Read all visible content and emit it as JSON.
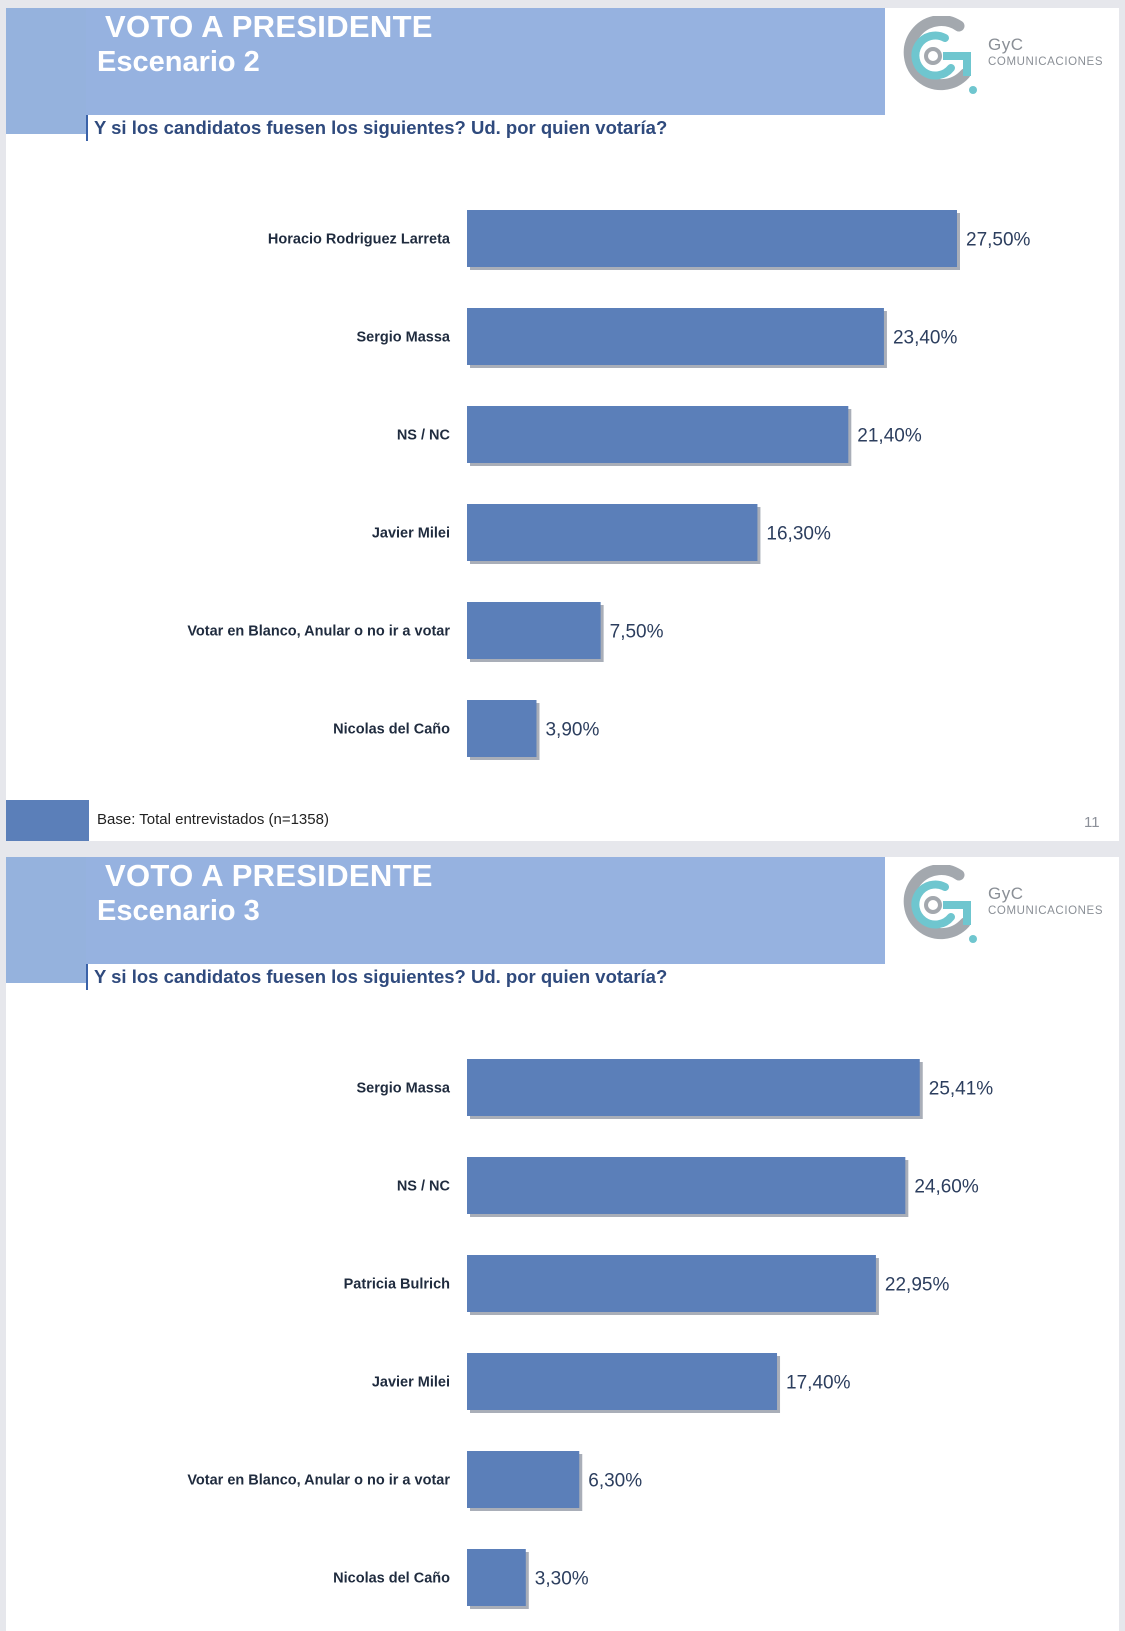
{
  "slides": [
    {
      "title": "VOTO A PRESIDENTE",
      "subtitle": "Escenario 2",
      "question": "Y si los candidatos fuesen los siguientes? Ud. por quien votaría?",
      "footer": "Base: Total entrevistados (n=1358)",
      "page_number": "11"
    },
    {
      "title": "VOTO A PRESIDENTE",
      "subtitle": "Escenario 3",
      "question": "Y si los candidatos fuesen los siguientes? Ud. por quien votaría?"
    }
  ],
  "brand": {
    "name": "GyC",
    "sub": "COMUNICACIONES",
    "colors": {
      "teal": "#6fc6cf",
      "gray": "#a3a8ae"
    }
  },
  "colors": {
    "bar": "#5b7fb9",
    "header": "#96b2e0",
    "question": "#2f4a7d"
  },
  "chart_data": [
    {
      "type": "bar",
      "orientation": "horizontal",
      "title": "VOTO A PRESIDENTE – Escenario 2",
      "categories": [
        "Horacio Rodriguez Larreta",
        "Sergio Massa",
        "NS / NC",
        "Javier Milei",
        "Votar en Blanco, Anular o no ir a votar",
        "Nicolas del Caño"
      ],
      "values": [
        27.5,
        23.4,
        21.4,
        16.3,
        7.5,
        3.9
      ],
      "value_labels": [
        "27,50%",
        "23,40%",
        "21,40%",
        "16,30%",
        "7,50%",
        "3,90%"
      ],
      "xlim": [
        0,
        27.5
      ],
      "unit": "%",
      "grid": false
    },
    {
      "type": "bar",
      "orientation": "horizontal",
      "title": "VOTO A PRESIDENTE – Escenario 3",
      "categories": [
        "Sergio Massa",
        "NS / NC",
        "Patricia Bulrich",
        "Javier Milei",
        "Votar en Blanco, Anular o no ir a votar",
        "Nicolas del Caño"
      ],
      "values": [
        25.41,
        24.6,
        22.95,
        17.4,
        6.3,
        3.3
      ],
      "value_labels": [
        "25,41%",
        "24,60%",
        "22,95%",
        "17,40%",
        "6,30%",
        "3,30%"
      ],
      "xlim": [
        0,
        27.5
      ],
      "unit": "%",
      "grid": false
    }
  ]
}
